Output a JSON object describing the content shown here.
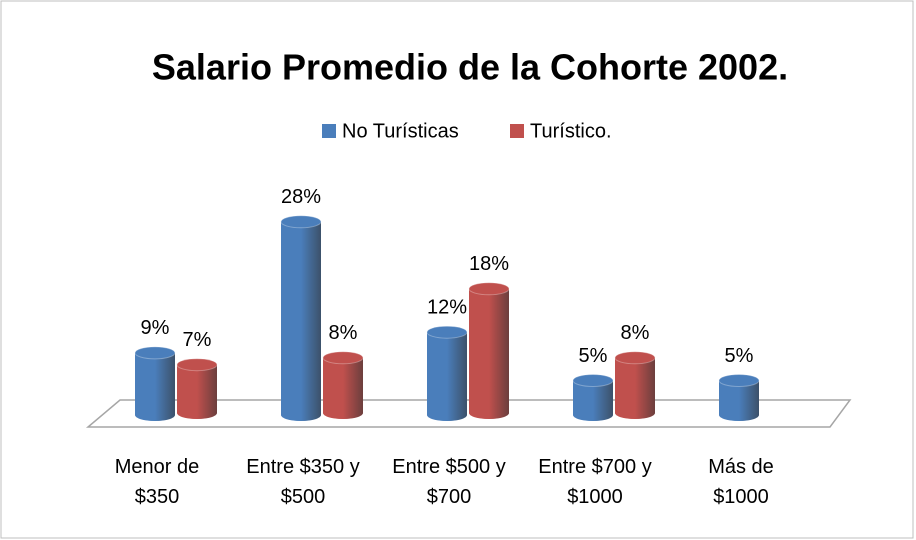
{
  "chart_data": {
    "type": "bar3d",
    "title": "Salario Promedio de la Cohorte 2002.",
    "categories": [
      "Menor de $350",
      "Entre $350 y $500",
      "Entre $500 y $700",
      "Entre $700 y $1000",
      "Más de $1000"
    ],
    "series": [
      {
        "name": "No Turísticas",
        "color": "#4a7ebb",
        "values": [
          9,
          28,
          12,
          5,
          5
        ],
        "value_labels": [
          "9%",
          "28%",
          "12%",
          "5%",
          "5%"
        ]
      },
      {
        "name": "Turístico.",
        "color": "#c0504d",
        "values": [
          7,
          8,
          18,
          8,
          null
        ],
        "value_labels": [
          "7%",
          "8%",
          "18%",
          "8%",
          null
        ]
      }
    ],
    "legend": "top"
  }
}
